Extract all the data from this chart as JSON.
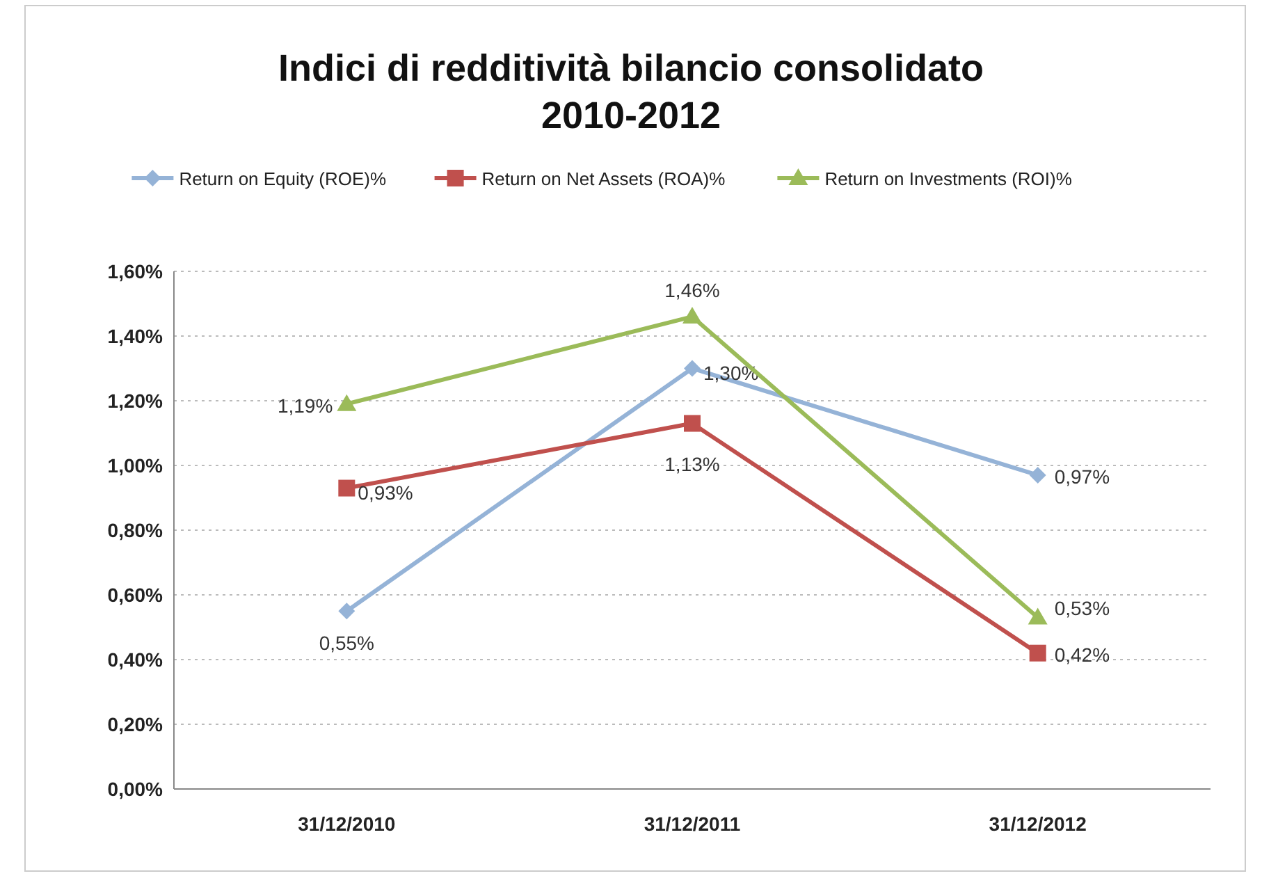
{
  "chart_data": {
    "type": "line",
    "title": "Indici di redditività bilancio consolidato\n2010-2012",
    "categories": [
      "31/12/2010",
      "31/12/2011",
      "31/12/2012"
    ],
    "series": [
      {
        "name": "Return on Equity (ROE)%",
        "color": "#95b3d7",
        "marker": "diamond",
        "values": [
          0.55,
          1.3,
          0.97
        ],
        "value_labels": [
          "0,55%",
          "1,30%",
          "0,97%"
        ]
      },
      {
        "name": "Return on Net Assets (ROA)%",
        "color": "#c0504d",
        "marker": "square",
        "values": [
          0.93,
          1.13,
          0.42
        ],
        "value_labels": [
          "0,93%",
          "1,13%",
          "0,42%"
        ]
      },
      {
        "name": "Return on Investments (ROI)%",
        "color": "#9bbb59",
        "marker": "triangle",
        "values": [
          1.19,
          1.46,
          0.53
        ],
        "value_labels": [
          "1,19%",
          "1,46%",
          "0,53%"
        ]
      }
    ],
    "ylim": [
      0,
      1.6
    ],
    "yticks": [
      {
        "value": 0,
        "label": "0,00%"
      },
      {
        "value": 0.2,
        "label": "0,20%"
      },
      {
        "value": 0.4,
        "label": "0,40%"
      },
      {
        "value": 0.6,
        "label": "0,60%"
      },
      {
        "value": 0.8,
        "label": "0,80%"
      },
      {
        "value": 1.0,
        "label": "1,00%"
      },
      {
        "value": 1.2,
        "label": "1,20%"
      },
      {
        "value": 1.4,
        "label": "1,40%"
      },
      {
        "value": 1.6,
        "label": "1,60%"
      }
    ],
    "grid": "y",
    "legend": "top",
    "line_style": "solid"
  }
}
